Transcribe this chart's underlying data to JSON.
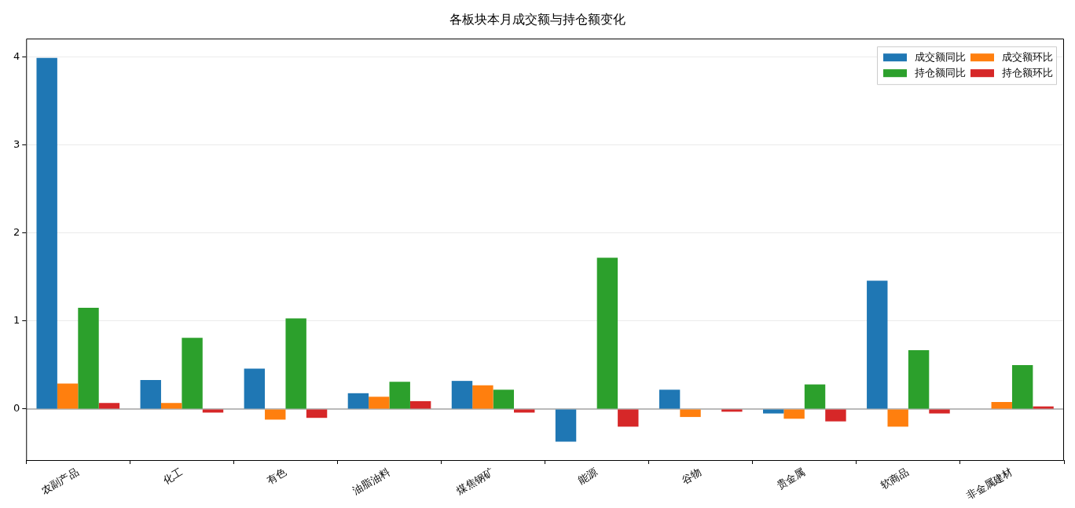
{
  "chart_data": {
    "type": "bar",
    "title": "各板块本月成交额与持仓额变化",
    "categories": [
      "农副产品",
      "化工",
      "有色",
      "油脂油料",
      "煤焦钢矿",
      "能源",
      "谷物",
      "贵金属",
      "软商品",
      "非金属建材"
    ],
    "series": [
      {
        "name": "成交额同比",
        "color": "#1f77b4",
        "values": [
          3.99,
          0.33,
          0.46,
          0.18,
          0.32,
          -0.37,
          0.22,
          -0.05,
          1.46,
          0
        ]
      },
      {
        "name": "成交额环比",
        "color": "#ff7f0e",
        "values": [
          0.29,
          0.07,
          -0.12,
          0.14,
          0.27,
          0,
          -0.09,
          -0.11,
          -0.2,
          0.08
        ]
      },
      {
        "name": "持仓额同比",
        "color": "#2ca02c",
        "values": [
          1.15,
          0.81,
          1.03,
          0.31,
          0.22,
          1.72,
          0,
          0.28,
          0.67,
          0.5
        ]
      },
      {
        "name": "持仓额环比",
        "color": "#d62728",
        "values": [
          0.07,
          -0.04,
          -0.1,
          0.09,
          -0.04,
          -0.2,
          -0.03,
          -0.14,
          -0.05,
          0.03
        ]
      }
    ],
    "ylim": [
      -0.58,
      4.21
    ],
    "yticks": [
      0,
      1,
      2,
      3,
      4
    ],
    "grid": "y",
    "legend": "top right",
    "ref_lines": [
      {
        "axis": "y",
        "value": 0,
        "color": "#808080"
      }
    ]
  }
}
